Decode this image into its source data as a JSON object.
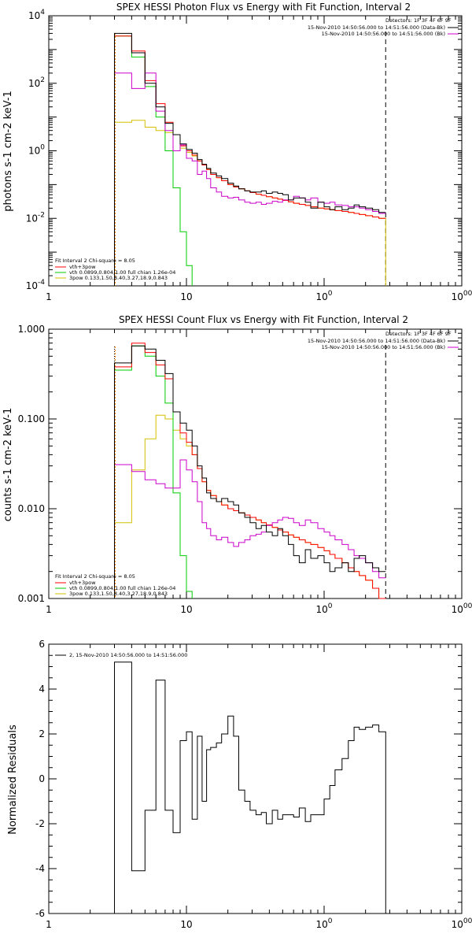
{
  "colors": {
    "data": "#000000",
    "vth_3pow": "#ff0000",
    "vth": "#00cc00",
    "3pow": "#d4c000",
    "background": "#cc00cc",
    "energy_marker": "#ff8c00"
  },
  "chart_data": [
    {
      "type": "line",
      "title": "SPEX HESSI Photon Flux vs Energy with Fit Function, Interval 2",
      "ylabel": "photons s-1 cm-2 keV-1",
      "xlabel": "",
      "xscale": "log",
      "yscale": "log",
      "xlim": [
        1,
        1000
      ],
      "ylim": [
        0.0001,
        10000
      ],
      "xticks": [
        "1",
        "10",
        "100",
        "1000"
      ],
      "yticks": [
        "10-4",
        "10-2",
        "100",
        "102",
        "104"
      ],
      "detector_line": "Detectors: 1F 3F 4F 6F 9F",
      "time_lines": [
        "15-Nov-2010 14:50:56.000 to 14:51:56.000 (Data-Bk)",
        "15-Nov-2010 14:50:56.000 to 14:51:56.000 (Bk)"
      ],
      "fit_info": "Fit Interval 2   Chi-square = 8.05",
      "legend": [
        {
          "label": "vth+3pow",
          "color": "#ff0000"
        },
        {
          "label": "vth 0.0899,0.804,1.00  full chian 1.26e-04",
          "color": "#00cc00"
        },
        {
          "label": "3pow 0.133,1.50,8.40,3.27,18.9,0.843",
          "color": "#d4c000"
        }
      ],
      "legend_position": "bottom-left",
      "vlines": [
        3,
        280
      ],
      "bin_edges": [
        3,
        4,
        5,
        6,
        7,
        8,
        9,
        10,
        11,
        12,
        13,
        14,
        15,
        16.5,
        18,
        20,
        22,
        24,
        26.5,
        29,
        32,
        35,
        38,
        42,
        46,
        50,
        55,
        60,
        66,
        73,
        80,
        90,
        100,
        110,
        120,
        135,
        150,
        165,
        180,
        200,
        225,
        250,
        280
      ],
      "series": [
        {
          "name": "Data-Bk",
          "color": "#000000",
          "values": [
            3000,
            800,
            100,
            20,
            6.5,
            3,
            1.6,
            1.1,
            0.85,
            0.55,
            0.4,
            0.3,
            0.22,
            0.18,
            0.15,
            0.11,
            0.09,
            0.075,
            0.065,
            0.06,
            0.06,
            0.065,
            0.055,
            0.06,
            0.055,
            0.05,
            0.035,
            0.04,
            0.04,
            0.03,
            0.02,
            0.03,
            0.022,
            0.018,
            0.022,
            0.018,
            0.02,
            0.025,
            0.022,
            0.02,
            0.018,
            0.015
          ]
        },
        {
          "name": "Bk",
          "color": "#cc00cc",
          "values": [
            200,
            70,
            200,
            15,
            4,
            1,
            1.5,
            0.6,
            0.5,
            0.2,
            0.25,
            0.15,
            0.08,
            0.06,
            0.045,
            0.04,
            0.042,
            0.035,
            0.03,
            0.028,
            0.03,
            0.026,
            0.028,
            0.032,
            0.03,
            0.035,
            0.035,
            0.045,
            0.04,
            0.035,
            0.04,
            0.03,
            0.028,
            0.03,
            0.025,
            0.024,
            0.022,
            0.022,
            0.02,
            0.018,
            0.016,
            0.014
          ]
        },
        {
          "name": "vth+3pow",
          "color": "#ff0000",
          "values": [
            2500,
            900,
            120,
            25,
            7,
            3,
            1.4,
            1.0,
            0.75,
            0.5,
            0.38,
            0.28,
            0.2,
            0.16,
            0.13,
            0.1,
            0.085,
            0.075,
            0.065,
            0.058,
            0.052,
            0.048,
            0.044,
            0.04,
            0.037,
            0.034,
            0.031,
            0.028,
            0.026,
            0.024,
            0.022,
            0.02,
            0.019,
            0.018,
            0.017,
            0.016,
            0.015,
            0.014,
            0.013,
            0.012,
            0.011,
            0.01
          ]
        },
        {
          "name": "vth",
          "color": "#00cc00",
          "values": [
            2500,
            600,
            80,
            10,
            1,
            0.08,
            0.004,
            0.0004,
            null,
            null,
            null,
            null,
            null,
            null,
            null,
            null,
            null,
            null,
            null,
            null,
            null,
            null,
            null,
            null,
            null,
            null,
            null,
            null,
            null,
            null,
            null,
            null,
            null,
            null,
            null,
            null,
            null,
            null,
            null,
            null,
            null,
            null
          ]
        },
        {
          "name": "3pow",
          "color": "#d4c000",
          "values": [
            7,
            8,
            5,
            4,
            3.5,
            3,
            1.2,
            0.9,
            0.7,
            0.5,
            0.38,
            0.28,
            0.2,
            0.16,
            0.13,
            0.1,
            0.085,
            0.075,
            0.065,
            0.058,
            0.052,
            0.048,
            0.044,
            0.04,
            0.037,
            0.034,
            0.031,
            0.028,
            0.026,
            0.024,
            0.022,
            0.02,
            0.019,
            0.018,
            0.017,
            0.016,
            0.015,
            0.014,
            0.013,
            0.012,
            0.011,
            0.01
          ]
        }
      ]
    },
    {
      "type": "line",
      "title": "SPEX HESSI Count Flux vs Energy with Fit Function, Interval 2",
      "ylabel": "counts s-1 cm-2 keV-1",
      "xlabel": "",
      "xscale": "log",
      "yscale": "log",
      "xlim": [
        1,
        1000
      ],
      "ylim": [
        0.001,
        1.0
      ],
      "xticks": [
        "1",
        "10",
        "100",
        "1000"
      ],
      "yticks": [
        "0.001",
        "0.010",
        "0.100",
        "1.000"
      ],
      "detector_line": "Detectors: 1F 3F 4F 6F 9F",
      "time_lines": [
        "15-Nov-2010 14:50:56.000 to 14:51:56.000 (Data-Bk)",
        "15-Nov-2010 14:50:56.000 to 14:51:56.000 (Bk)"
      ],
      "fit_info": "Fit Interval 2   Chi-square = 8.05",
      "legend": [
        {
          "label": "vth+3pow",
          "color": "#ff0000"
        },
        {
          "label": "vth 0.0899,0.804,1.00  full chian 1.26e-04",
          "color": "#00cc00"
        },
        {
          "label": "3pow 0.133,1.50,8.40,3.27,18.9,0.843",
          "color": "#d4c000"
        }
      ],
      "legend_position": "bottom-left",
      "vlines": [
        3,
        280
      ],
      "bin_edges": [
        3,
        4,
        5,
        6,
        7,
        8,
        9,
        10,
        11,
        12,
        13,
        14,
        15,
        16.5,
        18,
        20,
        22,
        24,
        26.5,
        29,
        32,
        35,
        38,
        42,
        46,
        50,
        55,
        60,
        66,
        73,
        80,
        90,
        100,
        110,
        120,
        135,
        150,
        165,
        180,
        200,
        225,
        250,
        280
      ],
      "series": [
        {
          "name": "Data-Bk",
          "color": "#000000",
          "values": [
            0.42,
            0.65,
            0.6,
            0.45,
            0.32,
            0.12,
            0.09,
            0.075,
            0.05,
            0.03,
            0.022,
            0.015,
            0.013,
            0.012,
            0.013,
            0.012,
            0.011,
            0.009,
            0.008,
            0.007,
            0.006,
            0.0065,
            0.0055,
            0.005,
            0.006,
            0.005,
            0.004,
            0.003,
            0.0025,
            0.0035,
            0.0028,
            0.003,
            0.0025,
            0.002,
            0.0022,
            0.0025,
            0.002,
            0.0028,
            0.003,
            0.0025,
            0.0022,
            0.002
          ]
        },
        {
          "name": "Bk",
          "color": "#cc00cc",
          "values": [
            0.031,
            0.026,
            0.021,
            0.019,
            0.017,
            0.017,
            0.035,
            0.027,
            0.02,
            0.012,
            0.007,
            0.006,
            0.005,
            0.0045,
            0.0048,
            0.0042,
            0.0038,
            0.0042,
            0.0045,
            0.005,
            0.0052,
            0.0055,
            0.0065,
            0.007,
            0.0075,
            0.008,
            0.0078,
            0.007,
            0.0065,
            0.0075,
            0.007,
            0.006,
            0.0055,
            0.005,
            0.0045,
            0.004,
            0.0035,
            0.003,
            0.0028,
            0.0025,
            0.002,
            0.0017
          ]
        },
        {
          "name": "vth+3pow",
          "color": "#ff0000",
          "values": [
            0.38,
            0.7,
            0.55,
            0.4,
            0.28,
            0.12,
            0.07,
            0.055,
            0.04,
            0.028,
            0.02,
            0.016,
            0.014,
            0.012,
            0.011,
            0.01,
            0.0095,
            0.009,
            0.0085,
            0.008,
            0.0075,
            0.007,
            0.0066,
            0.0062,
            0.0058,
            0.0055,
            0.0051,
            0.0048,
            0.0045,
            0.0042,
            0.004,
            0.0037,
            0.0034,
            0.0031,
            0.0028,
            0.0025,
            0.0022,
            0.002,
            0.0018,
            0.0016,
            0.0013,
            0.001
          ]
        },
        {
          "name": "vth",
          "color": "#00cc00",
          "values": [
            0.35,
            0.65,
            0.5,
            0.3,
            0.15,
            0.015,
            0.003,
            0.0012,
            null,
            null,
            null,
            null,
            null,
            null,
            null,
            null,
            null,
            null,
            null,
            null,
            null,
            null,
            null,
            null,
            null,
            null,
            null,
            null,
            null,
            null,
            null,
            null,
            null,
            null,
            null,
            null,
            null,
            null,
            null,
            null,
            null,
            null
          ]
        },
        {
          "name": "3pow",
          "color": "#d4c000",
          "values": [
            0.007,
            0.027,
            0.06,
            0.11,
            0.1,
            0.075,
            0.06,
            0.05,
            0.04,
            0.028,
            0.02,
            0.016,
            0.014,
            0.012,
            0.011,
            0.01,
            0.0095,
            0.009,
            0.0085,
            0.008,
            0.0075,
            0.007,
            0.0066,
            0.0062,
            0.0058,
            0.0055,
            0.0051,
            0.0048,
            0.0045,
            0.0042,
            0.004,
            0.0037,
            0.0034,
            0.0031,
            0.0028,
            0.0025,
            0.0022,
            0.002,
            0.0018,
            0.0016,
            0.0013,
            0.001
          ]
        }
      ]
    },
    {
      "type": "line",
      "title": "",
      "ylabel": "Normalized Residuals",
      "xlabel": "",
      "xscale": "log",
      "yscale": "linear",
      "xlim": [
        1,
        1000
      ],
      "ylim": [
        -6,
        6
      ],
      "xticks": [
        "1",
        "10",
        "100",
        "1000"
      ],
      "yticks": [
        "-6",
        "-4",
        "-2",
        "0",
        "2",
        "4",
        "6"
      ],
      "legend": [
        {
          "label": "2, 15-Nov-2010 14:50:56.000 to 14:51:56.000",
          "color": "#000000"
        }
      ],
      "legend_position": "top-left",
      "bin_edges": [
        3,
        4,
        5,
        6,
        7,
        8,
        9,
        10,
        11,
        12,
        13,
        14,
        15,
        16.5,
        18,
        20,
        22,
        24,
        26.5,
        29,
        32,
        35,
        38,
        42,
        46,
        50,
        55,
        60,
        66,
        73,
        80,
        90,
        100,
        110,
        120,
        135,
        150,
        165,
        180,
        200,
        225,
        250,
        280
      ],
      "series": [
        {
          "name": "residuals",
          "color": "#000000",
          "values": [
            5.2,
            -4.1,
            -1.4,
            4.4,
            -1.4,
            -2.4,
            1.7,
            2.1,
            -1.8,
            1.9,
            -1.0,
            1.3,
            1.4,
            1.6,
            2.0,
            2.8,
            1.9,
            -0.5,
            -1.0,
            -1.4,
            -1.6,
            -1.5,
            -2.0,
            -1.4,
            -1.8,
            -1.6,
            -1.6,
            -1.7,
            -1.3,
            -1.9,
            -1.6,
            -1.6,
            -0.9,
            -0.3,
            0.4,
            0.9,
            1.7,
            2.3,
            2.2,
            2.3,
            2.4,
            2.1
          ]
        }
      ]
    }
  ]
}
